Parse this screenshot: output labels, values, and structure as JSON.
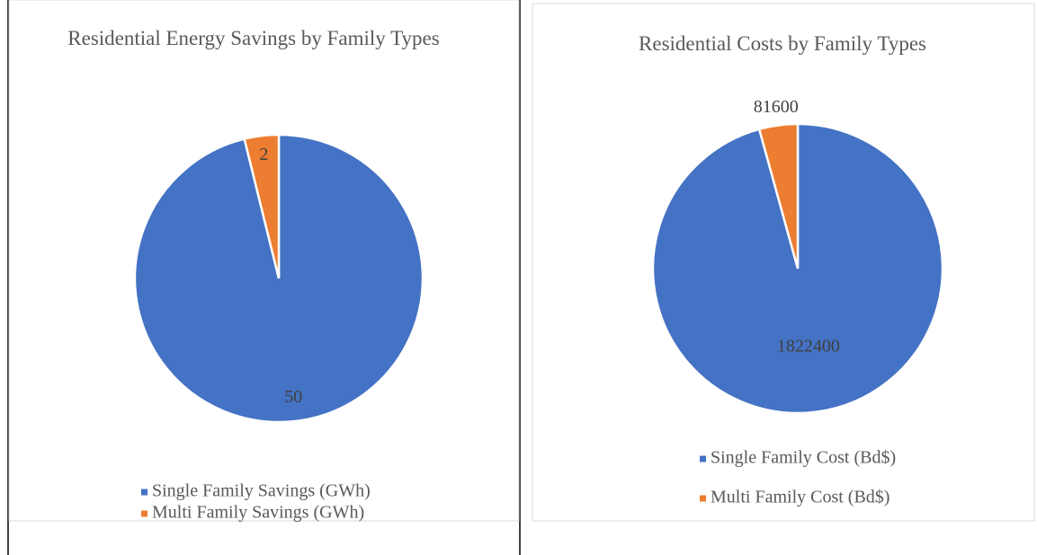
{
  "chart_data": [
    {
      "type": "pie",
      "title": "Residential Energy Savings by Family Types",
      "categories": [
        "Single Family Savings (GWh)",
        "Multi Family Savings (GWh)"
      ],
      "values": [
        50,
        2
      ],
      "colors": [
        "#4472c4",
        "#ed7d31"
      ],
      "legend": "bottom"
    },
    {
      "type": "pie",
      "title": "Residential Costs by Family Types",
      "categories": [
        "Single Family Cost (Bd$)",
        "Multi Family Cost (Bd$)"
      ],
      "values": [
        1822400,
        81600
      ],
      "colors": [
        "#4472c4",
        "#ed7d31"
      ],
      "legend": "bottom"
    }
  ]
}
